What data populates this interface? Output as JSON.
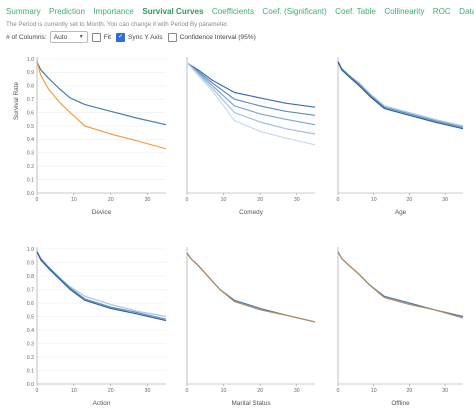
{
  "tabs": [
    {
      "label": "Summary"
    },
    {
      "label": "Prediction"
    },
    {
      "label": "Importance"
    },
    {
      "label": "Survival Curves",
      "active": true
    },
    {
      "label": "Coefficients"
    },
    {
      "label": "Coef. (Significant)"
    },
    {
      "label": "Coef. Table"
    },
    {
      "label": "Collinearity"
    },
    {
      "label": "ROC"
    },
    {
      "label": "Data"
    }
  ],
  "info_text": "The Period is currently set to Month. You can change it with Period By parameter.",
  "controls": {
    "columns_label": "# of Columns:",
    "columns_value": "Auto",
    "fit_label": "Fit",
    "fit_checked": false,
    "sync_label": "Sync Y Axis",
    "sync_checked": true,
    "ci_label": "Confidence Interval (95%)",
    "ci_checked": false
  },
  "colors": {
    "accent": "#3fae72",
    "blue": "#4a7bb0",
    "orange": "#f0a04a",
    "brown": "#b08a5f"
  },
  "chart_data": [
    {
      "type": "line",
      "title": "",
      "xlabel": "Device",
      "ylabel": "Survival Rate",
      "xlim": [
        0,
        35
      ],
      "ylim": [
        0,
        1
      ],
      "xticks": [
        0,
        10,
        20,
        30
      ],
      "yticks": [
        0,
        0.1,
        0.2,
        0.3,
        0.4,
        0.5,
        0.6,
        0.7,
        0.8,
        0.9,
        1.0
      ],
      "series": [
        {
          "color": "#4a7bb0",
          "points": [
            [
              0,
              0.98
            ],
            [
              1,
              0.92
            ],
            [
              3,
              0.86
            ],
            [
              6,
              0.78
            ],
            [
              9,
              0.71
            ],
            [
              13,
              0.66
            ],
            [
              20,
              0.61
            ],
            [
              27,
              0.56
            ],
            [
              35,
              0.51
            ]
          ]
        },
        {
          "color": "#f0a04a",
          "points": [
            [
              0,
              0.98
            ],
            [
              1,
              0.88
            ],
            [
              3,
              0.78
            ],
            [
              6,
              0.68
            ],
            [
              9,
              0.6
            ],
            [
              13,
              0.5
            ],
            [
              20,
              0.44
            ],
            [
              27,
              0.39
            ],
            [
              35,
              0.33
            ]
          ]
        }
      ]
    },
    {
      "type": "line",
      "title": "",
      "xlabel": "Comedy",
      "ylabel": "",
      "xlim": [
        0,
        35
      ],
      "ylim": [
        0,
        1
      ],
      "xticks": [
        0,
        10,
        20,
        30
      ],
      "yticks": [],
      "series": [
        {
          "color": "#3a6fa8",
          "points": [
            [
              0,
              0.97
            ],
            [
              3,
              0.92
            ],
            [
              7,
              0.84
            ],
            [
              13,
              0.75
            ],
            [
              20,
              0.71
            ],
            [
              27,
              0.67
            ],
            [
              35,
              0.64
            ]
          ]
        },
        {
          "color": "#5d8cc0",
          "points": [
            [
              0,
              0.97
            ],
            [
              3,
              0.91
            ],
            [
              7,
              0.82
            ],
            [
              13,
              0.7
            ],
            [
              20,
              0.65
            ],
            [
              27,
              0.61
            ],
            [
              35,
              0.58
            ]
          ]
        },
        {
          "color": "#7ea6d0",
          "points": [
            [
              0,
              0.97
            ],
            [
              3,
              0.9
            ],
            [
              7,
              0.8
            ],
            [
              13,
              0.65
            ],
            [
              20,
              0.59
            ],
            [
              27,
              0.55
            ],
            [
              35,
              0.51
            ]
          ]
        },
        {
          "color": "#a3c0de",
          "points": [
            [
              0,
              0.97
            ],
            [
              3,
              0.89
            ],
            [
              7,
              0.78
            ],
            [
              13,
              0.6
            ],
            [
              20,
              0.53
            ],
            [
              27,
              0.48
            ],
            [
              35,
              0.44
            ]
          ]
        },
        {
          "color": "#c8d9ec",
          "points": [
            [
              0,
              0.97
            ],
            [
              3,
              0.88
            ],
            [
              7,
              0.76
            ],
            [
              13,
              0.54
            ],
            [
              20,
              0.46
            ],
            [
              27,
              0.41
            ],
            [
              35,
              0.36
            ]
          ]
        }
      ]
    },
    {
      "type": "line",
      "title": "",
      "xlabel": "Age",
      "ylabel": "",
      "xlim": [
        0,
        35
      ],
      "ylim": [
        0,
        1
      ],
      "xticks": [
        0,
        10,
        20,
        30
      ],
      "yticks": [],
      "series": [
        {
          "color": "#a9c6e2",
          "points": [
            [
              0,
              0.98
            ],
            [
              1,
              0.93
            ],
            [
              3,
              0.88
            ],
            [
              6,
              0.82
            ],
            [
              9,
              0.74
            ],
            [
              13,
              0.65
            ],
            [
              20,
              0.6
            ],
            [
              27,
              0.55
            ],
            [
              35,
              0.5
            ]
          ]
        },
        {
          "color": "#5f8fc2",
          "points": [
            [
              0,
              0.98
            ],
            [
              1,
              0.93
            ],
            [
              3,
              0.88
            ],
            [
              6,
              0.81
            ],
            [
              9,
              0.73
            ],
            [
              13,
              0.64
            ],
            [
              20,
              0.59
            ],
            [
              27,
              0.54
            ],
            [
              35,
              0.49
            ]
          ]
        },
        {
          "color": "#2f5f95",
          "points": [
            [
              0,
              0.98
            ],
            [
              1,
              0.92
            ],
            [
              3,
              0.87
            ],
            [
              6,
              0.8
            ],
            [
              9,
              0.72
            ],
            [
              13,
              0.63
            ],
            [
              20,
              0.58
            ],
            [
              27,
              0.53
            ],
            [
              35,
              0.48
            ]
          ]
        }
      ]
    },
    {
      "type": "line",
      "title": "",
      "xlabel": "Action",
      "ylabel": "",
      "xlim": [
        0,
        35
      ],
      "ylim": [
        0,
        1
      ],
      "xticks": [
        0,
        10,
        20,
        30
      ],
      "yticks": [
        0,
        0.1,
        0.2,
        0.3,
        0.4,
        0.5,
        0.6,
        0.7,
        0.8,
        0.9,
        1.0
      ],
      "series": [
        {
          "color": "#a9c6e2",
          "points": [
            [
              0,
              0.98
            ],
            [
              1,
              0.93
            ],
            [
              3,
              0.87
            ],
            [
              6,
              0.79
            ],
            [
              9,
              0.72
            ],
            [
              13,
              0.65
            ],
            [
              20,
              0.59
            ],
            [
              27,
              0.54
            ],
            [
              35,
              0.5
            ]
          ]
        },
        {
          "color": "#5f8fc2",
          "points": [
            [
              0,
              0.98
            ],
            [
              1,
              0.93
            ],
            [
              3,
              0.87
            ],
            [
              6,
              0.79
            ],
            [
              9,
              0.71
            ],
            [
              13,
              0.63
            ],
            [
              20,
              0.57
            ],
            [
              27,
              0.53
            ],
            [
              35,
              0.48
            ]
          ]
        },
        {
          "color": "#2f5f95",
          "points": [
            [
              0,
              0.98
            ],
            [
              1,
              0.92
            ],
            [
              3,
              0.86
            ],
            [
              6,
              0.78
            ],
            [
              9,
              0.7
            ],
            [
              13,
              0.62
            ],
            [
              20,
              0.56
            ],
            [
              27,
              0.52
            ],
            [
              35,
              0.47
            ]
          ]
        }
      ]
    },
    {
      "type": "line",
      "title": "",
      "xlabel": "Marital Status",
      "ylabel": "",
      "xlim": [
        0,
        35
      ],
      "ylim": [
        0,
        1
      ],
      "xticks": [
        0,
        10,
        20,
        30
      ],
      "yticks": [],
      "series": [
        {
          "color": "#4a7bb0",
          "points": [
            [
              0,
              0.97
            ],
            [
              1,
              0.93
            ],
            [
              3,
              0.88
            ],
            [
              6,
              0.79
            ],
            [
              9,
              0.7
            ],
            [
              13,
              0.62
            ],
            [
              20,
              0.56
            ],
            [
              27,
              0.51
            ],
            [
              35,
              0.46
            ]
          ]
        },
        {
          "color": "#b08a5f",
          "points": [
            [
              0,
              0.97
            ],
            [
              1,
              0.93
            ],
            [
              3,
              0.88
            ],
            [
              6,
              0.79
            ],
            [
              9,
              0.7
            ],
            [
              13,
              0.61
            ],
            [
              20,
              0.55
            ],
            [
              27,
              0.51
            ],
            [
              35,
              0.46
            ]
          ]
        }
      ]
    },
    {
      "type": "line",
      "title": "",
      "xlabel": "Offline",
      "ylabel": "",
      "xlim": [
        0,
        35
      ],
      "ylim": [
        0,
        1
      ],
      "xticks": [
        0,
        10,
        20,
        30
      ],
      "yticks": [],
      "series": [
        {
          "color": "#4a7bb0",
          "points": [
            [
              0,
              0.98
            ],
            [
              1,
              0.93
            ],
            [
              3,
              0.88
            ],
            [
              6,
              0.81
            ],
            [
              9,
              0.73
            ],
            [
              13,
              0.65
            ],
            [
              20,
              0.6
            ],
            [
              27,
              0.55
            ],
            [
              35,
              0.5
            ]
          ]
        },
        {
          "color": "#b08a5f",
          "points": [
            [
              0,
              0.98
            ],
            [
              1,
              0.93
            ],
            [
              3,
              0.88
            ],
            [
              6,
              0.81
            ],
            [
              9,
              0.73
            ],
            [
              13,
              0.64
            ],
            [
              20,
              0.59
            ],
            [
              27,
              0.55
            ],
            [
              35,
              0.49
            ]
          ]
        }
      ]
    }
  ]
}
